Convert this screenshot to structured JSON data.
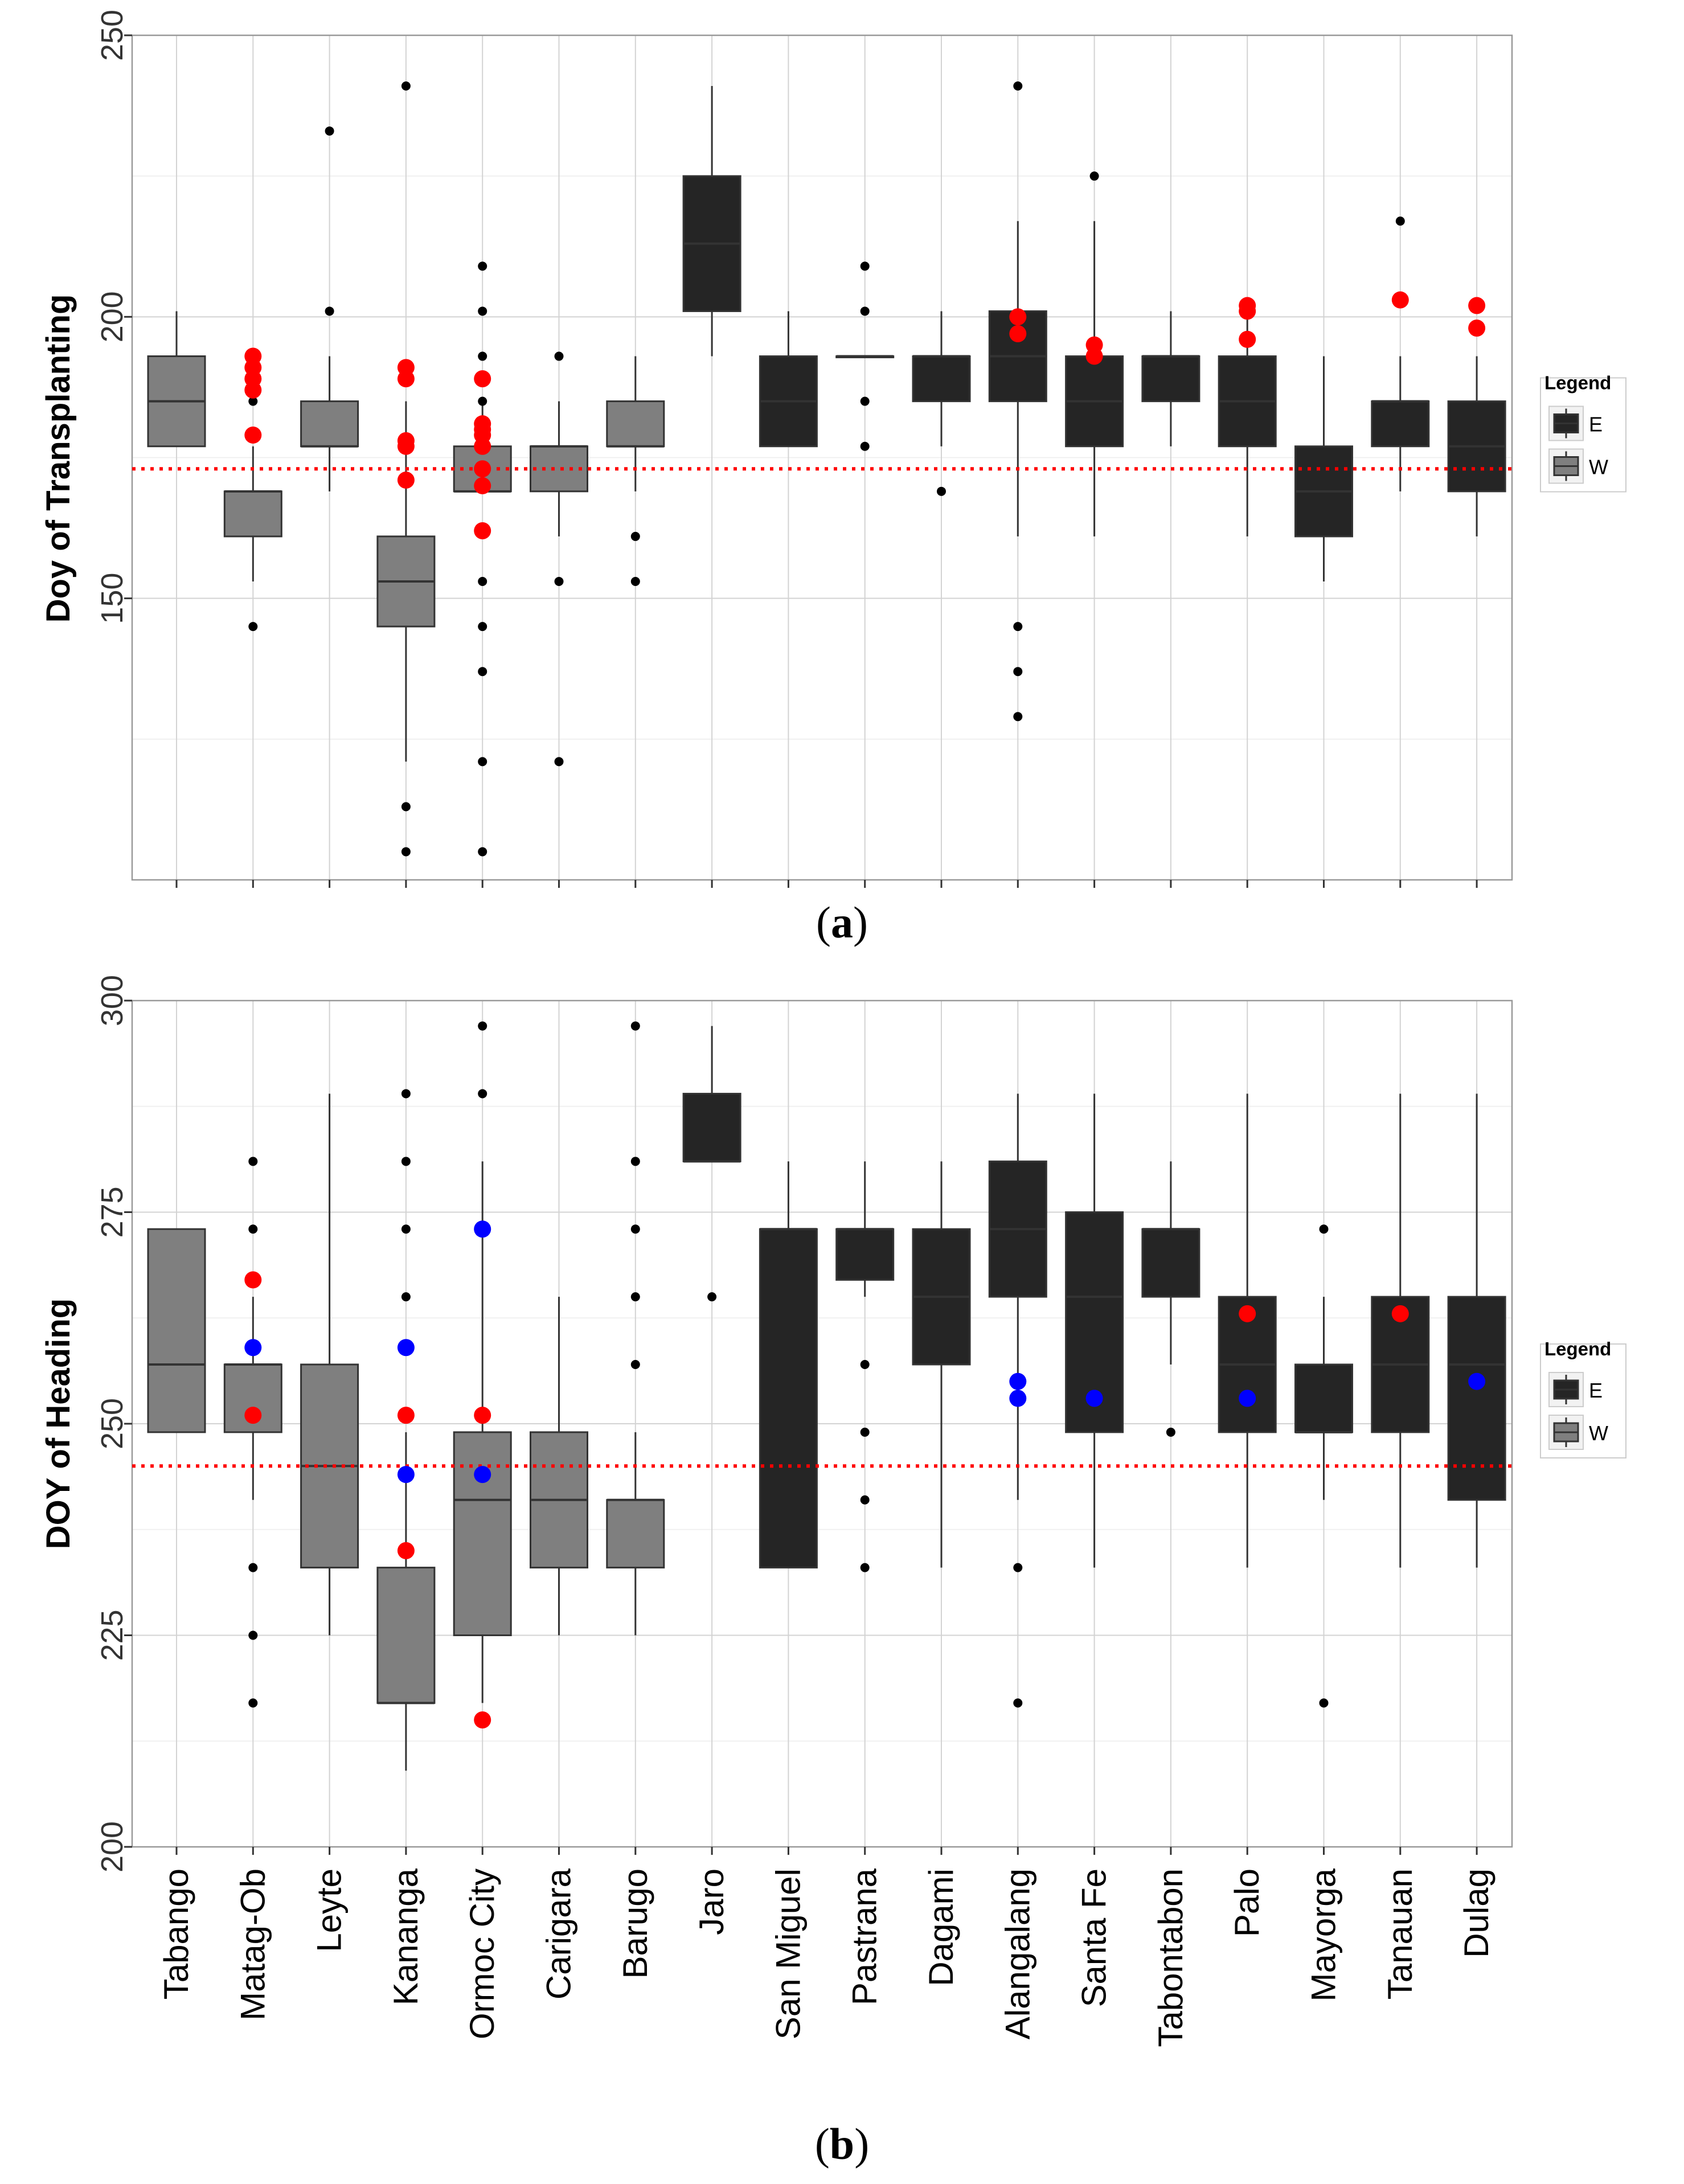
{
  "figure": {
    "panel_a_caption": "a",
    "panel_b_caption": "b"
  },
  "legend": {
    "title": "Legend",
    "entries": [
      {
        "key": "E",
        "color": "#252525"
      },
      {
        "key": "W",
        "color": "#7f7f7f"
      }
    ]
  },
  "colors": {
    "E": "#252525",
    "W": "#7f7f7f",
    "reference_line": "#ff0000",
    "highlight_red": "#ff0000",
    "highlight_blue": "#0000ff",
    "outlier": "#000000"
  },
  "chart_data": [
    {
      "type": "boxplot",
      "panel": "a",
      "title": "",
      "xlabel": "",
      "ylabel": "Doy of Transplanting",
      "ylim": [
        100,
        250
      ],
      "yticks": [
        150,
        200,
        250
      ],
      "reference_line_y": 173,
      "categories": [
        "Tabango",
        "Matag-Ob",
        "Leyte",
        "Kananga",
        "Ormoc City",
        "Carigara",
        "Barugo",
        "Jaro",
        "San Miguel",
        "Pastrana",
        "Dagami",
        "Alangalang",
        "Santa Fe",
        "Tabontabon",
        "Palo",
        "Mayorga",
        "Tanauan",
        "Dulag"
      ],
      "groups": [
        "W",
        "W",
        "W",
        "W",
        "W",
        "W",
        "W",
        "E",
        "E",
        "E",
        "E",
        "E",
        "E",
        "E",
        "E",
        "E",
        "E",
        "E"
      ],
      "boxes": [
        {
          "q1": 177,
          "median": 185,
          "q3": 193,
          "whisker_low": 177,
          "whisker_high": 201,
          "outliers": [],
          "red_points": [],
          "blue_points": []
        },
        {
          "q1": 161,
          "median": 169,
          "q3": 169,
          "whisker_low": 153,
          "whisker_high": 177,
          "outliers": [
            145,
            185
          ],
          "red_points": [
            193,
            191,
            189,
            187,
            179
          ],
          "blue_points": []
        },
        {
          "q1": 177,
          "median": 177,
          "q3": 185,
          "whisker_low": 169,
          "whisker_high": 193,
          "outliers": [
            201,
            233
          ],
          "red_points": [],
          "blue_points": []
        },
        {
          "q1": 145,
          "median": 153,
          "q3": 161,
          "whisker_low": 121,
          "whisker_high": 185,
          "outliers": [
            105,
            113,
            241
          ],
          "red_points": [
            191,
            189,
            178,
            177,
            171
          ],
          "blue_points": []
        },
        {
          "q1": 169,
          "median": 169,
          "q3": 177,
          "whisker_low": 169,
          "whisker_high": 185,
          "outliers": [
            105,
            121,
            137,
            145,
            153,
            185,
            193,
            201,
            209
          ],
          "red_points": [
            189,
            181,
            180,
            179,
            177,
            173,
            170,
            162
          ],
          "blue_points": []
        },
        {
          "q1": 169,
          "median": 177,
          "q3": 177,
          "whisker_low": 161,
          "whisker_high": 185,
          "outliers": [
            121,
            153,
            193
          ],
          "red_points": [],
          "blue_points": []
        },
        {
          "q1": 177,
          "median": 177,
          "q3": 185,
          "whisker_low": 169,
          "whisker_high": 193,
          "outliers": [
            153,
            161
          ],
          "red_points": [],
          "blue_points": []
        },
        {
          "q1": 201,
          "median": 213,
          "q3": 225,
          "whisker_low": 193,
          "whisker_high": 241,
          "outliers": [],
          "red_points": [],
          "blue_points": []
        },
        {
          "q1": 177,
          "median": 185,
          "q3": 193,
          "whisker_low": 177,
          "whisker_high": 201,
          "outliers": [],
          "red_points": [],
          "blue_points": []
        },
        {
          "q1": 193,
          "median": 193,
          "q3": 193,
          "whisker_low": 193,
          "whisker_high": 193,
          "outliers": [
            177,
            185,
            201,
            209
          ],
          "red_points": [],
          "blue_points": []
        },
        {
          "q1": 185,
          "median": 193,
          "q3": 193,
          "whisker_low": 177,
          "whisker_high": 201,
          "outliers": [
            169
          ],
          "red_points": [],
          "blue_points": []
        },
        {
          "q1": 185,
          "median": 193,
          "q3": 201,
          "whisker_low": 161,
          "whisker_high": 217,
          "outliers": [
            129,
            137,
            145,
            241
          ],
          "red_points": [
            200,
            197
          ],
          "blue_points": []
        },
        {
          "q1": 177,
          "median": 185,
          "q3": 193,
          "whisker_low": 161,
          "whisker_high": 217,
          "outliers": [
            225
          ],
          "red_points": [
            195,
            193
          ],
          "blue_points": []
        },
        {
          "q1": 185,
          "median": 193,
          "q3": 193,
          "whisker_low": 177,
          "whisker_high": 201,
          "outliers": [],
          "red_points": [],
          "blue_points": []
        },
        {
          "q1": 177,
          "median": 185,
          "q3": 193,
          "whisker_low": 161,
          "whisker_high": 201,
          "outliers": [],
          "red_points": [
            202,
            201,
            196
          ],
          "blue_points": []
        },
        {
          "q1": 161,
          "median": 169,
          "q3": 177,
          "whisker_low": 153,
          "whisker_high": 193,
          "outliers": [],
          "red_points": [],
          "blue_points": []
        },
        {
          "q1": 177,
          "median": 185,
          "q3": 185,
          "whisker_low": 169,
          "whisker_high": 193,
          "outliers": [
            217
          ],
          "red_points": [
            203
          ],
          "blue_points": []
        },
        {
          "q1": 169,
          "median": 177,
          "q3": 185,
          "whisker_low": 161,
          "whisker_high": 193,
          "outliers": [],
          "red_points": [
            202,
            198
          ],
          "blue_points": []
        }
      ]
    },
    {
      "type": "boxplot",
      "panel": "b",
      "title": "",
      "xlabel": "",
      "ylabel": "DOY of Heading",
      "ylim": [
        200,
        300
      ],
      "yticks": [
        200,
        225,
        250,
        275,
        300
      ],
      "reference_line_y": 245,
      "categories": [
        "Tabango",
        "Matag-Ob",
        "Leyte",
        "Kananga",
        "Ormoc City",
        "Carigara",
        "Barugo",
        "Jaro",
        "San Miguel",
        "Pastrana",
        "Dagami",
        "Alangalang",
        "Santa Fe",
        "Tabontabon",
        "Palo",
        "Mayorga",
        "Tanauan",
        "Dulag"
      ],
      "groups": [
        "W",
        "W",
        "W",
        "W",
        "W",
        "W",
        "W",
        "E",
        "E",
        "E",
        "E",
        "E",
        "E",
        "E",
        "E",
        "E",
        "E",
        "E"
      ],
      "boxes": [
        {
          "q1": 249,
          "median": 257,
          "q3": 273,
          "whisker_low": 249,
          "whisker_high": 273,
          "outliers": [],
          "red_points": [],
          "blue_points": []
        },
        {
          "q1": 249,
          "median": 257,
          "q3": 257,
          "whisker_low": 241,
          "whisker_high": 265,
          "outliers": [
            217,
            225,
            233,
            273,
            281
          ],
          "red_points": [
            267,
            251
          ],
          "blue_points": [
            259
          ]
        },
        {
          "q1": 233,
          "median": 245,
          "q3": 257,
          "whisker_low": 225,
          "whisker_high": 289,
          "outliers": [],
          "red_points": [],
          "blue_points": []
        },
        {
          "q1": 217,
          "median": 217,
          "q3": 233,
          "whisker_low": 209,
          "whisker_high": 249,
          "outliers": [
            265,
            273,
            281,
            289
          ],
          "red_points": [
            251,
            235
          ],
          "blue_points": [
            259,
            244
          ]
        },
        {
          "q1": 225,
          "median": 241,
          "q3": 249,
          "whisker_low": 217,
          "whisker_high": 281,
          "outliers": [
            289,
            297
          ],
          "red_points": [
            251,
            215
          ],
          "blue_points": [
            273,
            244
          ]
        },
        {
          "q1": 233,
          "median": 241,
          "q3": 249,
          "whisker_low": 225,
          "whisker_high": 265,
          "outliers": [],
          "red_points": [],
          "blue_points": []
        },
        {
          "q1": 233,
          "median": 241,
          "q3": 241,
          "whisker_low": 225,
          "whisker_high": 249,
          "outliers": [
            257,
            265,
            273,
            281,
            297
          ],
          "red_points": [],
          "blue_points": []
        },
        {
          "q1": 281,
          "median": 281,
          "q3": 289,
          "whisker_low": 281,
          "whisker_high": 297,
          "outliers": [
            265
          ],
          "red_points": [],
          "blue_points": []
        },
        {
          "q1": 233,
          "median": 273,
          "q3": 273,
          "whisker_low": 233,
          "whisker_high": 281,
          "outliers": [],
          "red_points": [],
          "blue_points": []
        },
        {
          "q1": 267,
          "median": 273,
          "q3": 273,
          "whisker_low": 265,
          "whisker_high": 281,
          "outliers": [
            233,
            241,
            249,
            257
          ],
          "red_points": [],
          "blue_points": []
        },
        {
          "q1": 257,
          "median": 265,
          "q3": 273,
          "whisker_low": 233,
          "whisker_high": 281,
          "outliers": [],
          "red_points": [],
          "blue_points": []
        },
        {
          "q1": 265,
          "median": 273,
          "q3": 281,
          "whisker_low": 241,
          "whisker_high": 289,
          "outliers": [
            217,
            233
          ],
          "red_points": [],
          "blue_points": [
            255,
            253
          ]
        },
        {
          "q1": 249,
          "median": 265,
          "q3": 275,
          "whisker_low": 233,
          "whisker_high": 289,
          "outliers": [],
          "red_points": [],
          "blue_points": [
            253
          ]
        },
        {
          "q1": 265,
          "median": 273,
          "q3": 273,
          "whisker_low": 257,
          "whisker_high": 281,
          "outliers": [
            249
          ],
          "red_points": [],
          "blue_points": []
        },
        {
          "q1": 249,
          "median": 257,
          "q3": 265,
          "whisker_low": 233,
          "whisker_high": 289,
          "outliers": [],
          "red_points": [
            263
          ],
          "blue_points": [
            253
          ]
        },
        {
          "q1": 249,
          "median": 249,
          "q3": 257,
          "whisker_low": 241,
          "whisker_high": 265,
          "outliers": [
            217,
            273
          ],
          "red_points": [],
          "blue_points": []
        },
        {
          "q1": 249,
          "median": 257,
          "q3": 265,
          "whisker_low": 233,
          "whisker_high": 289,
          "outliers": [],
          "red_points": [
            263
          ],
          "blue_points": []
        },
        {
          "q1": 241,
          "median": 257,
          "q3": 265,
          "whisker_low": 233,
          "whisker_high": 289,
          "outliers": [],
          "red_points": [],
          "blue_points": [
            255
          ]
        }
      ]
    }
  ]
}
